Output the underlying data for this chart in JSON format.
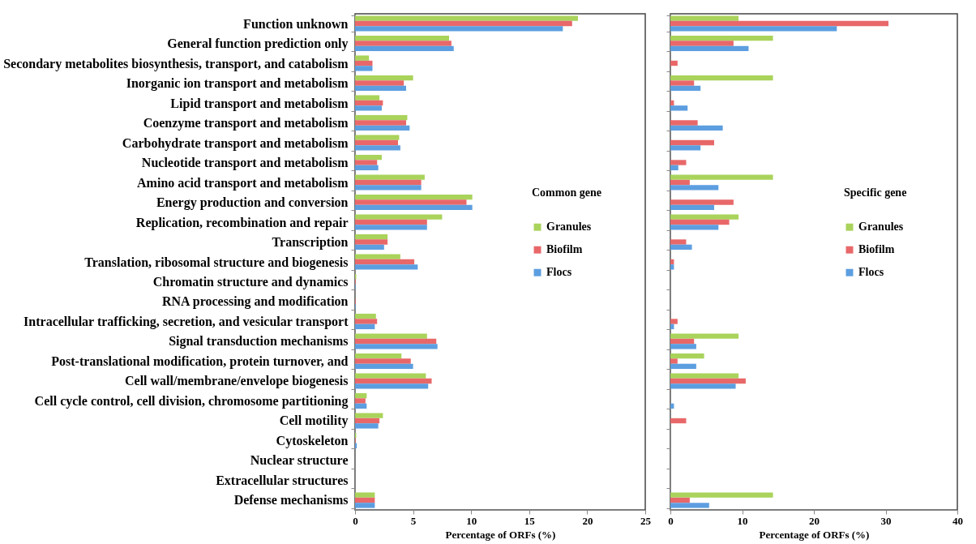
{
  "chart_data": [
    {
      "type": "bar",
      "orientation": "horizontal",
      "categories": [
        "Function unknown",
        "General function prediction only",
        "Secondary metabolites biosynthesis, transport, and catabolism",
        "Inorganic ion transport and metabolism",
        "Lipid transport and metabolism",
        "Coenzyme transport and metabolism",
        "Carbohydrate transport and metabolism",
        "Nucleotide transport and metabolism",
        "Amino acid transport and metabolism",
        "Energy production and conversion",
        "Replication, recombination and repair",
        "Transcription",
        "Translation, ribosomal structure and biogenesis",
        "Chromatin structure and dynamics",
        "RNA processing and modification",
        "Intracellular trafficking, secretion, and vesicular transport",
        "Signal transduction mechanisms",
        "Post-translational modification, protein turnover, and",
        "Cell wall/membrane/envelope biogenesis",
        "Cell cycle control, cell division, chromosome partitioning",
        "Cell motility",
        "Cytoskeleton",
        "Nuclear structure",
        "Extracellular structures",
        "Defense mechanisms"
      ],
      "series": [
        {
          "name": "Granules",
          "color": "#a9d35b",
          "values": [
            19.2,
            8.1,
            1.2,
            5.0,
            2.1,
            4.5,
            3.8,
            2.3,
            6.0,
            10.1,
            7.5,
            2.8,
            3.9,
            0.1,
            0,
            1.8,
            6.2,
            4.0,
            6.1,
            1.0,
            2.4,
            0.1,
            0,
            0,
            1.7
          ]
        },
        {
          "name": "Biofilm",
          "color": "#e8686a",
          "values": [
            18.7,
            8.3,
            1.5,
            4.2,
            2.4,
            4.4,
            3.7,
            1.9,
            5.7,
            9.6,
            6.2,
            2.8,
            5.1,
            0.05,
            0.05,
            1.9,
            7.0,
            4.8,
            6.6,
            0.9,
            2.1,
            0.05,
            0,
            0,
            1.7
          ]
        },
        {
          "name": "Flocs",
          "color": "#5c9ee0",
          "values": [
            17.9,
            8.5,
            1.5,
            4.4,
            2.3,
            4.7,
            3.9,
            2.0,
            5.7,
            10.1,
            6.2,
            2.5,
            5.4,
            0.05,
            0.05,
            1.7,
            7.1,
            5.0,
            6.3,
            1.0,
            2.0,
            0.15,
            0,
            0,
            1.7
          ]
        }
      ],
      "xlim": [
        0,
        25
      ],
      "xticks": [
        0,
        5,
        10,
        15,
        20,
        25
      ],
      "xlabel": "Percentage of ORFs (%)",
      "legend_title": "Common gene",
      "legend": "right"
    },
    {
      "type": "bar",
      "orientation": "horizontal",
      "categories": [
        null,
        null,
        null,
        null,
        null,
        null,
        null,
        null,
        null,
        null,
        null,
        null,
        null,
        null,
        null,
        null,
        null,
        null,
        null,
        null,
        null,
        null,
        null,
        null,
        null
      ],
      "series": [
        {
          "name": "Granules",
          "color": "#a9d35b",
          "values": [
            9.5,
            14.3,
            0,
            14.3,
            0,
            0,
            0,
            0,
            14.3,
            0,
            9.5,
            0,
            0,
            0,
            0,
            0,
            9.5,
            4.7,
            9.5,
            0,
            0,
            0,
            0,
            0,
            14.3
          ]
        },
        {
          "name": "Biofilm",
          "color": "#e8686a",
          "values": [
            30.4,
            8.8,
            1.0,
            3.3,
            0.5,
            3.8,
            6.1,
            2.2,
            2.7,
            8.8,
            8.2,
            2.2,
            0.5,
            0,
            0,
            1.0,
            3.3,
            1.0,
            10.5,
            0,
            2.2,
            0,
            0,
            0,
            2.7
          ]
        },
        {
          "name": "Flocs",
          "color": "#5c9ee0",
          "values": [
            23.2,
            10.9,
            0,
            4.2,
            2.4,
            7.3,
            4.2,
            1.1,
            6.7,
            6.1,
            6.7,
            3.0,
            0.5,
            0,
            0,
            0.5,
            3.6,
            3.6,
            9.1,
            0.5,
            0,
            0,
            0,
            0,
            5.4
          ]
        }
      ],
      "xlim": [
        0,
        40
      ],
      "xticks": [
        0,
        10,
        20,
        30,
        40
      ],
      "xlabel": "Percentage of ORFs (%)",
      "legend_title": "Specific gene",
      "legend": "right",
      "tick_labels": "x"
    }
  ]
}
